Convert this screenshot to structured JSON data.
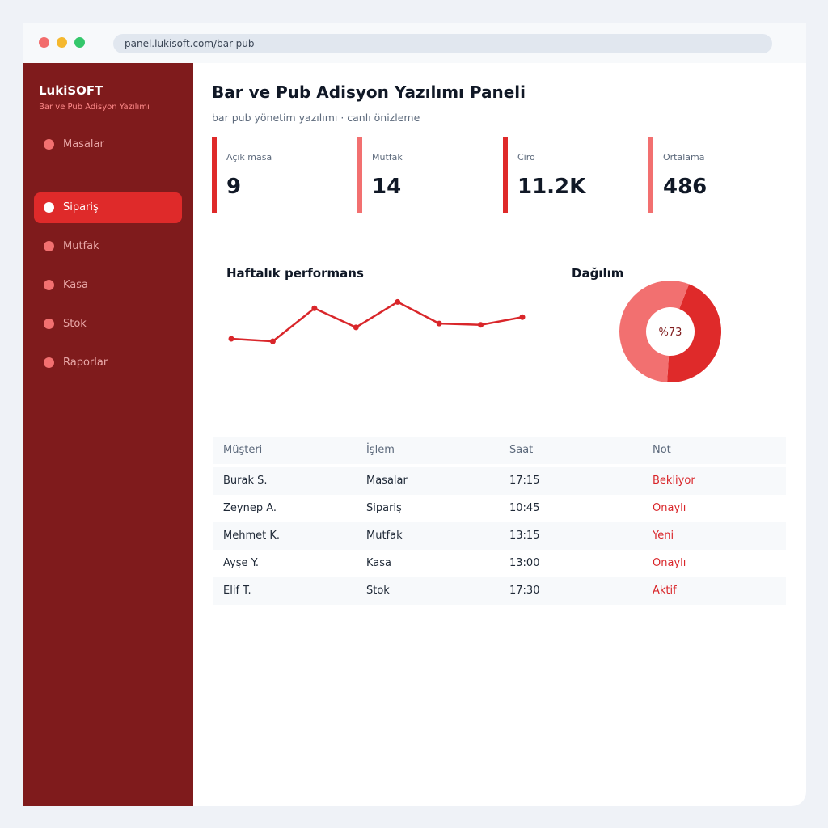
{
  "browser": {
    "url": "panel.lukisoft.com/bar-pub"
  },
  "sidebar": {
    "brand": "LukiSOFT",
    "brand_sub": "Bar ve Pub Adisyon Yazılımı",
    "items": [
      {
        "label": "Masalar",
        "active": false
      },
      {
        "label": "Sipariş",
        "active": true
      },
      {
        "label": "Mutfak",
        "active": false
      },
      {
        "label": "Kasa",
        "active": false
      },
      {
        "label": "Stok",
        "active": false
      },
      {
        "label": "Raporlar",
        "active": false
      }
    ]
  },
  "header": {
    "title": "Bar ve Pub Adisyon Yazılımı Paneli",
    "subtitle": "bar pub yönetim yazılımı · canlı önizleme"
  },
  "stats": [
    {
      "label": "Açık masa",
      "value": "9",
      "color": "#df2a2a"
    },
    {
      "label": "Mutfak",
      "value": "14",
      "color": "#f27070"
    },
    {
      "label": "Ciro",
      "value": "11.2K",
      "color": "#df2a2a"
    },
    {
      "label": "Ortalama",
      "value": "486",
      "color": "#f27070"
    }
  ],
  "performance": {
    "title": "Haftalık performans"
  },
  "distribution": {
    "title": "Dağılım",
    "center_label": "%73"
  },
  "chart_data": [
    {
      "type": "line",
      "title": "Haftalık performans",
      "x": [
        1,
        2,
        3,
        4,
        5,
        6,
        7,
        8
      ],
      "series": [
        {
          "values": [
            28,
            26,
            52,
            37,
            57,
            40,
            39,
            45
          ],
          "color": "#d9262a"
        }
      ],
      "ylim": [
        0,
        70
      ],
      "grid": false
    },
    {
      "type": "pie",
      "title": "Dağılım",
      "values": [
        45,
        55
      ],
      "colors": [
        "#df2a2a",
        "#f27070"
      ],
      "center_label": "%73"
    }
  ],
  "table": {
    "columns": [
      "Müşteri",
      "İşlem",
      "Saat",
      "Not"
    ],
    "rows": [
      [
        "Burak S.",
        "Masalar",
        "17:15",
        "Bekliyor"
      ],
      [
        "Zeynep A.",
        "Sipariş",
        "10:45",
        "Onaylı"
      ],
      [
        "Mehmet K.",
        "Mutfak",
        "13:15",
        "Yeni"
      ],
      [
        "Ayşe Y.",
        "Kasa",
        "13:00",
        "Onaylı"
      ],
      [
        "Elif T.",
        "Stok",
        "17:30",
        "Aktif"
      ]
    ],
    "note_color": "#d9262a"
  }
}
